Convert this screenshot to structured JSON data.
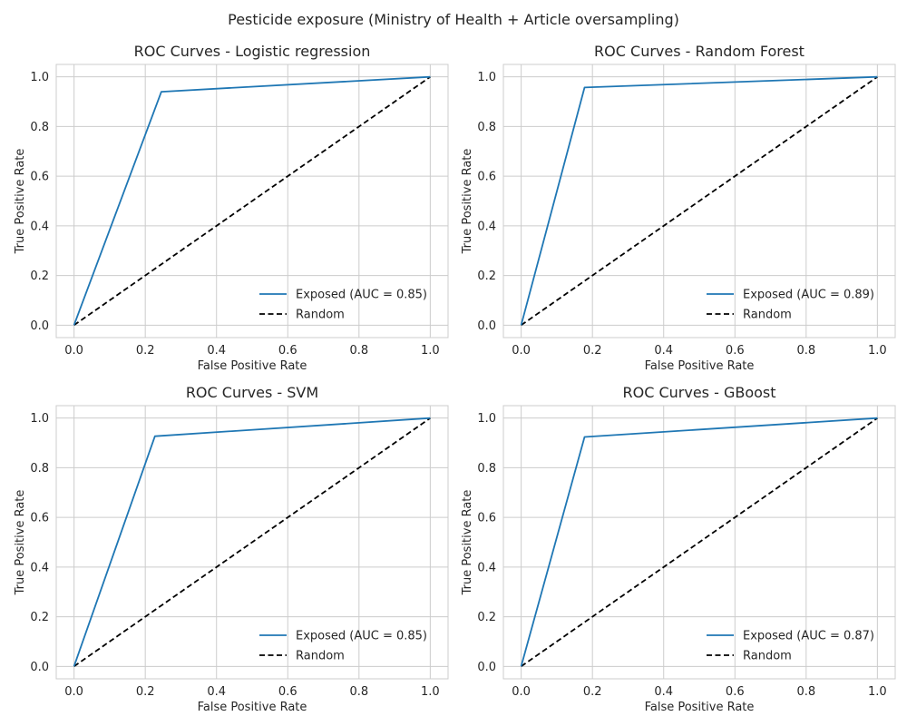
{
  "figure": {
    "suptitle": "Pesticide exposure (Ministry of Health + Article oversampling)"
  },
  "chart_data": [
    {
      "type": "line",
      "title": "ROC Curves - Logistic regression",
      "xlabel": "False Positive Rate",
      "ylabel": "True Positive Rate",
      "xlim": [
        -0.05,
        1.05
      ],
      "ylim": [
        -0.05,
        1.05
      ],
      "xticks": [
        "0.0",
        "0.2",
        "0.4",
        "0.6",
        "0.8",
        "1.0"
      ],
      "yticks": [
        "0.0",
        "0.2",
        "0.4",
        "0.6",
        "0.8",
        "1.0"
      ],
      "grid": true,
      "legend_position": "lower-right",
      "series": [
        {
          "name": "Exposed (AUC = 0.85)",
          "color": "#1f77b4",
          "style": "solid",
          "x": [
            0.0,
            0.245,
            1.0
          ],
          "y": [
            0.0,
            0.94,
            1.0
          ]
        },
        {
          "name": "Random",
          "color": "#000000",
          "style": "dashed",
          "x": [
            0.0,
            1.0
          ],
          "y": [
            0.0,
            1.0
          ]
        }
      ]
    },
    {
      "type": "line",
      "title": "ROC Curves - Random Forest",
      "xlabel": "False Positive Rate",
      "ylabel": "True Positive Rate",
      "xlim": [
        -0.05,
        1.05
      ],
      "ylim": [
        -0.05,
        1.05
      ],
      "xticks": [
        "0.0",
        "0.2",
        "0.4",
        "0.6",
        "0.8",
        "1.0"
      ],
      "yticks": [
        "0.0",
        "0.2",
        "0.4",
        "0.6",
        "0.8",
        "1.0"
      ],
      "grid": true,
      "legend_position": "lower-right",
      "series": [
        {
          "name": "Exposed (AUC = 0.89)",
          "color": "#1f77b4",
          "style": "solid",
          "x": [
            0.0,
            0.178,
            1.0
          ],
          "y": [
            0.0,
            0.957,
            1.0
          ]
        },
        {
          "name": "Random",
          "color": "#000000",
          "style": "dashed",
          "x": [
            0.0,
            1.0
          ],
          "y": [
            0.0,
            1.0
          ]
        }
      ]
    },
    {
      "type": "line",
      "title": "ROC Curves - SVM",
      "xlabel": "False Positive Rate",
      "ylabel": "True Positive Rate",
      "xlim": [
        -0.05,
        1.05
      ],
      "ylim": [
        -0.05,
        1.05
      ],
      "xticks": [
        "0.0",
        "0.2",
        "0.4",
        "0.6",
        "0.8",
        "1.0"
      ],
      "yticks": [
        "0.0",
        "0.2",
        "0.4",
        "0.6",
        "0.8",
        "1.0"
      ],
      "grid": true,
      "legend_position": "lower-right",
      "series": [
        {
          "name": "Exposed (AUC = 0.85)",
          "color": "#1f77b4",
          "style": "solid",
          "x": [
            0.0,
            0.227,
            1.0
          ],
          "y": [
            0.0,
            0.927,
            1.0
          ]
        },
        {
          "name": "Random",
          "color": "#000000",
          "style": "dashed",
          "x": [
            0.0,
            1.0
          ],
          "y": [
            0.0,
            1.0
          ]
        }
      ]
    },
    {
      "type": "line",
      "title": "ROC Curves - GBoost",
      "xlabel": "False Positive Rate",
      "ylabel": "True Positive Rate",
      "xlim": [
        -0.05,
        1.05
      ],
      "ylim": [
        -0.05,
        1.05
      ],
      "xticks": [
        "0.0",
        "0.2",
        "0.4",
        "0.6",
        "0.8",
        "1.0"
      ],
      "yticks": [
        "0.0",
        "0.2",
        "0.4",
        "0.6",
        "0.8",
        "1.0"
      ],
      "grid": true,
      "legend_position": "lower-right",
      "series": [
        {
          "name": "Exposed (AUC = 0.87)",
          "color": "#1f77b4",
          "style": "solid",
          "x": [
            0.0,
            0.178,
            1.0
          ],
          "y": [
            0.0,
            0.924,
            1.0
          ]
        },
        {
          "name": "Random",
          "color": "#000000",
          "style": "dashed",
          "x": [
            0.0,
            1.0
          ],
          "y": [
            0.0,
            1.0
          ]
        }
      ]
    }
  ]
}
